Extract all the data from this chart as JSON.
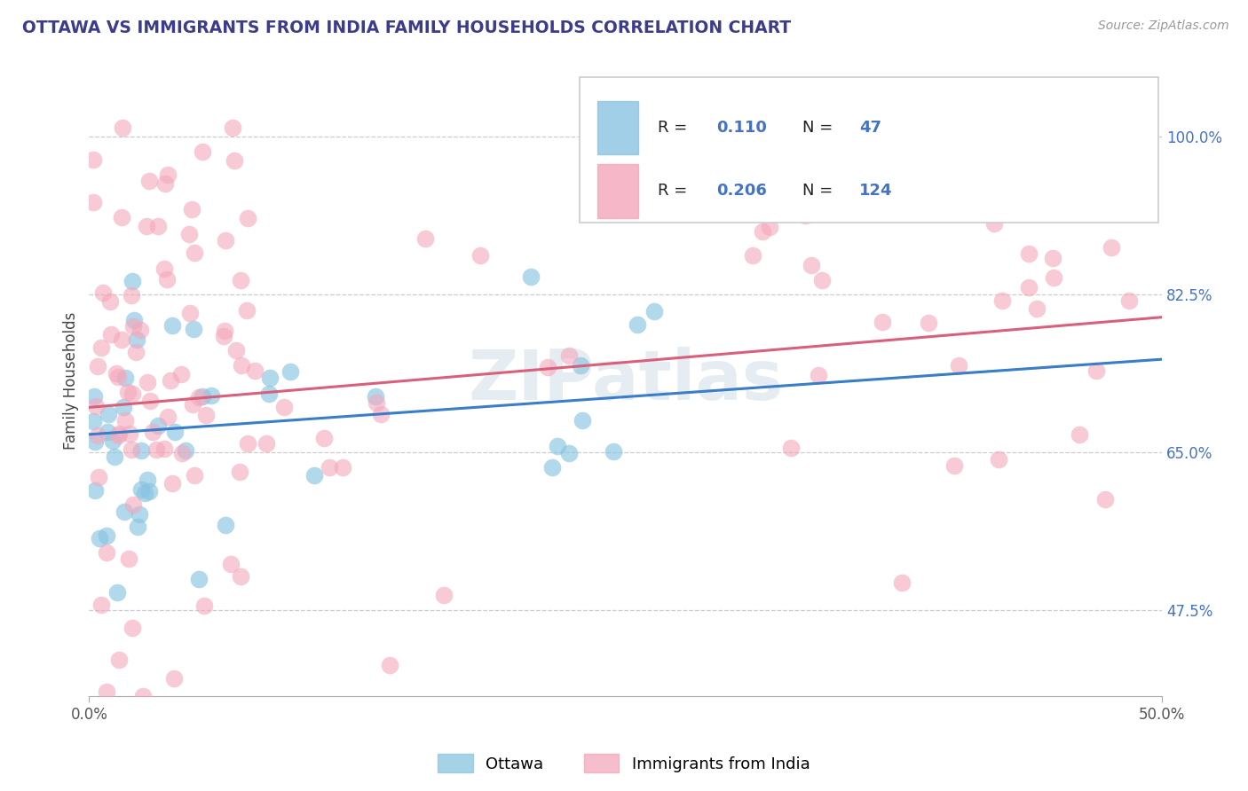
{
  "title": "OTTAWA VS IMMIGRANTS FROM INDIA FAMILY HOUSEHOLDS CORRELATION CHART",
  "source": "Source: ZipAtlas.com",
  "ylabel": "Family Households",
  "ytick_labels": [
    "47.5%",
    "65.0%",
    "82.5%",
    "100.0%"
  ],
  "ytick_values": [
    0.475,
    0.65,
    0.825,
    1.0
  ],
  "xlim": [
    0.0,
    0.5
  ],
  "ylim": [
    0.38,
    1.08
  ],
  "r_ottawa": 0.11,
  "n_ottawa": 47,
  "r_india": 0.206,
  "n_india": 124,
  "color_ottawa": "#89c4e1",
  "color_india": "#f4a7bb",
  "trendline_ottawa": "#3a7dc9",
  "trendline_india": "#d9607a",
  "legend_ottawa": "Ottawa",
  "legend_india": "Immigrants from India",
  "watermark": "ZIPatlas",
  "title_color": "#3c3c8c",
  "source_color": "#999999",
  "ylabel_color": "#444444",
  "ytick_color": "#4472c4",
  "xtick_color": "#555555",
  "grid_color": "#cccccc"
}
